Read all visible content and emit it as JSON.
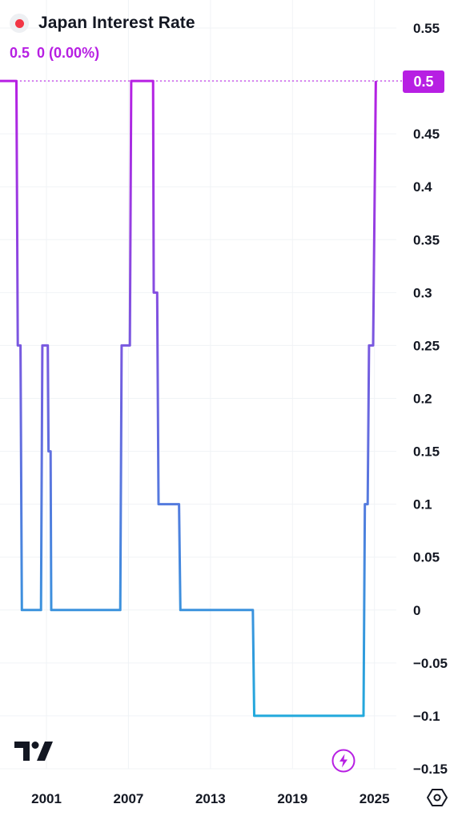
{
  "legend": {
    "title": "Japan Interest Rate",
    "last_value": "0.5",
    "change": "0 (0.00%)"
  },
  "price_tag": "0.5",
  "colors": {
    "line_top": "#b71fe3",
    "line_bottom": "#22a9dc",
    "accent": "#b71fe3",
    "status_dot": "#f23645",
    "grid": "#f0f3f6",
    "text": "#131722"
  },
  "icons": {
    "logo": "tradingview-logo-icon",
    "flash": "lightning-icon",
    "settings": "settings-hexagon-icon"
  },
  "chart_data": {
    "type": "line",
    "title": "Japan Interest Rate",
    "xlabel": "",
    "ylabel": "",
    "step": true,
    "xlim": [
      1997.6,
      2026.6
    ],
    "ylim": [
      -0.15,
      0.55
    ],
    "y_ticks": [
      0.55,
      0.5,
      0.45,
      0.4,
      0.35,
      0.3,
      0.25,
      0.2,
      0.15,
      0.1,
      0.05,
      0,
      -0.05,
      -0.1,
      -0.15
    ],
    "y_tick_labels": [
      "0.55",
      "0.5",
      "0.45",
      "0.4",
      "0.35",
      "0.3",
      "0.25",
      "0.2",
      "0.15",
      "0.1",
      "0.05",
      "0",
      "−0.05",
      "−0.1",
      "−0.15"
    ],
    "x_ticks": [
      2001,
      2007,
      2013,
      2019,
      2025
    ],
    "x_tick_labels": [
      "2001",
      "2007",
      "2013",
      "2019",
      "2025"
    ],
    "grid": true,
    "series": [
      {
        "points": [
          [
            1997.6,
            0.5
          ],
          [
            1998.8,
            0.5
          ],
          [
            1998.9,
            0.25
          ],
          [
            1999.1,
            0.25
          ],
          [
            1999.2,
            0.0
          ],
          [
            2000.6,
            0.0
          ],
          [
            2000.7,
            0.25
          ],
          [
            2001.1,
            0.25
          ],
          [
            2001.15,
            0.15
          ],
          [
            2001.3,
            0.15
          ],
          [
            2001.35,
            0.0
          ],
          [
            2006.4,
            0.0
          ],
          [
            2006.5,
            0.25
          ],
          [
            2007.1,
            0.25
          ],
          [
            2007.2,
            0.5
          ],
          [
            2008.8,
            0.5
          ],
          [
            2008.85,
            0.3
          ],
          [
            2009.1,
            0.3
          ],
          [
            2009.2,
            0.1
          ],
          [
            2010.7,
            0.1
          ],
          [
            2010.8,
            0.0
          ],
          [
            2016.1,
            0.0
          ],
          [
            2016.2,
            -0.1
          ],
          [
            2024.2,
            -0.1
          ],
          [
            2024.3,
            0.1
          ],
          [
            2024.5,
            0.1
          ],
          [
            2024.6,
            0.25
          ],
          [
            2024.9,
            0.25
          ],
          [
            2025.1,
            0.5
          ]
        ]
      }
    ]
  }
}
